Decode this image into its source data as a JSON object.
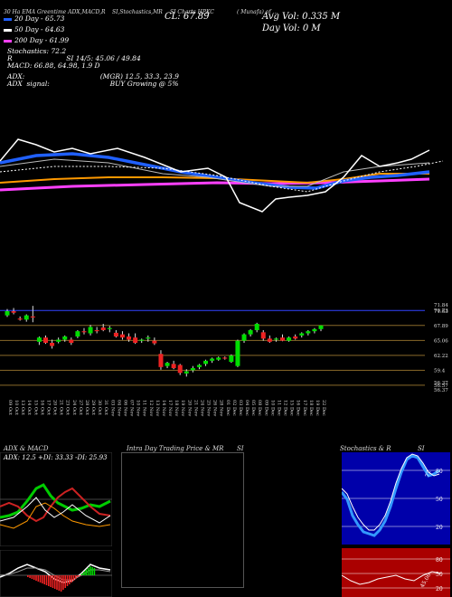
{
  "header": {
    "left_caption": "30 Ha EMA Greentime ADX,MACD,R",
    "mid_caption": "SI,Stochastics,MR",
    "right_caption": "SI Charts HPKC",
    "far_caption": "( Munafa) of ...",
    "close_label": "CL: 67.89",
    "avg_vol": "Avg Vol: 0.335  M",
    "day_vol": "Day Vol: 0   M"
  },
  "legend": [
    {
      "label": "20  Day - 65.73",
      "color": "#2060ff"
    },
    {
      "label": "50  Day - 64.63",
      "color": "#ffffff"
    },
    {
      "label": "200  Day - 61.99",
      "color": "#ff40ff"
    }
  ],
  "indicators": {
    "stoch": "Stochastics: 72.2",
    "rsi": "R                         SI 14/5: 45.06 / 49.84",
    "macd": "MACD: 66.88, 64.98, 1.9 D",
    "adx": "ADX:                                   (MGR) 12.5, 33.3, 23.9",
    "adx_signal": "ADX  signal:                            BUY Growing @ 5%"
  },
  "price_axis": [
    "71.84",
    "71.63",
    "70.73",
    "67.89",
    "65.06",
    "62.22",
    "59.4",
    "56.57",
    "56.37",
    "56.37"
  ],
  "date_labels": [
    "09 Oct",
    "10 Oct",
    "13 Oct",
    "14 Oct",
    "15 Oct",
    "16 Oct",
    "17 Oct",
    "20 Oct",
    "21 Oct",
    "23 Oct",
    "24 Oct",
    "27 Oct",
    "28 Oct",
    "29 Oct",
    "30 Oct",
    "31 Oct",
    "03 Nov",
    "04 Nov",
    "06 Nov",
    "07 Nov",
    "10 Nov",
    "11 Nov",
    "12 Nov",
    "13 Nov",
    "14 Nov",
    "17 Nov",
    "18 Nov",
    "19 Nov",
    "20 Nov",
    "21 Nov",
    "24 Nov",
    "25 Nov",
    "26 Nov",
    "28 Nov",
    "01 Dec",
    "02 Dec",
    "03 Dec",
    "04 Dec",
    "05 Dec",
    "08 Dec",
    "09 Dec",
    "10 Dec",
    "11 Dec",
    "12 Dec",
    "15 Dec",
    "16 Dec",
    "17 Dec",
    "18 Dec",
    "19 Dec",
    "22 Dec"
  ],
  "panels": {
    "adx_title": "ADX  & MACD",
    "adx_values": "ADX: 12.5  +DI: 33.33  -DI: 25.93",
    "intraday_title": "Intra  Day Trading Price  & MR",
    "intraday_si": "SI",
    "stoch_title": "Stochastics & R",
    "stoch_si": "SI",
    "stoch_axis": [
      "80",
      "50",
      "20"
    ],
    "rsi_axis": [
      "80",
      "50",
      "20"
    ],
    "stoch_value": "72",
    "rsi_value": "45.06"
  },
  "chart_data": {
    "type": "candlestick",
    "title": "",
    "ylim": [
      55,
      73
    ],
    "candles": [
      {
        "o": 69.8,
        "h": 71.0,
        "l": 69.5,
        "c": 70.6
      },
      {
        "o": 70.6,
        "h": 71.2,
        "l": 70.0,
        "c": 70.3
      },
      {
        "o": 69.2,
        "h": 69.6,
        "l": 68.8,
        "c": 69.0
      },
      {
        "o": 69.0,
        "h": 70.0,
        "l": 68.6,
        "c": 69.8
      },
      {
        "o": 69.6,
        "h": 71.6,
        "l": 68.5,
        "c": 69.4
      },
      {
        "o": 64.8,
        "h": 65.8,
        "l": 64.2,
        "c": 65.6
      },
      {
        "o": 65.6,
        "h": 66.0,
        "l": 64.4,
        "c": 64.6
      },
      {
        "o": 64.6,
        "h": 65.2,
        "l": 63.5,
        "c": 64.0
      },
      {
        "o": 64.8,
        "h": 65.6,
        "l": 64.5,
        "c": 65.2
      },
      {
        "o": 65.2,
        "h": 66.0,
        "l": 64.8,
        "c": 65.8
      },
      {
        "o": 65.2,
        "h": 65.6,
        "l": 64.2,
        "c": 64.6
      },
      {
        "o": 65.8,
        "h": 67.0,
        "l": 65.5,
        "c": 66.8
      },
      {
        "o": 66.8,
        "h": 67.4,
        "l": 66.2,
        "c": 66.6
      },
      {
        "o": 66.4,
        "h": 68.0,
        "l": 66.0,
        "c": 67.6
      },
      {
        "o": 67.0,
        "h": 67.6,
        "l": 66.4,
        "c": 66.8
      },
      {
        "o": 67.5,
        "h": 68.2,
        "l": 66.8,
        "c": 67.0
      },
      {
        "o": 67.2,
        "h": 67.8,
        "l": 66.6,
        "c": 67.4
      },
      {
        "o": 66.5,
        "h": 67.0,
        "l": 65.6,
        "c": 65.8
      },
      {
        "o": 66.2,
        "h": 66.8,
        "l": 65.2,
        "c": 65.6
      },
      {
        "o": 65.8,
        "h": 66.4,
        "l": 64.8,
        "c": 65.2
      },
      {
        "o": 65.6,
        "h": 66.4,
        "l": 64.4,
        "c": 64.6
      },
      {
        "o": 65.0,
        "h": 65.4,
        "l": 64.6,
        "c": 65.2
      },
      {
        "o": 65.4,
        "h": 66.0,
        "l": 64.8,
        "c": 65.6
      },
      {
        "o": 65.0,
        "h": 65.6,
        "l": 64.2,
        "c": 64.5
      },
      {
        "o": 62.5,
        "h": 63.2,
        "l": 59.5,
        "c": 60.0
      },
      {
        "o": 60.2,
        "h": 61.0,
        "l": 59.8,
        "c": 60.8
      },
      {
        "o": 60.6,
        "h": 61.2,
        "l": 59.6,
        "c": 59.8
      },
      {
        "o": 60.4,
        "h": 60.6,
        "l": 58.5,
        "c": 58.9
      },
      {
        "o": 58.8,
        "h": 59.6,
        "l": 58.2,
        "c": 59.2
      },
      {
        "o": 59.4,
        "h": 60.2,
        "l": 59.0,
        "c": 59.8
      },
      {
        "o": 60.0,
        "h": 60.6,
        "l": 59.6,
        "c": 60.4
      },
      {
        "o": 60.6,
        "h": 61.4,
        "l": 60.2,
        "c": 61.2
      },
      {
        "o": 61.2,
        "h": 61.8,
        "l": 60.8,
        "c": 61.6
      },
      {
        "o": 61.4,
        "h": 62.0,
        "l": 61.2,
        "c": 61.8
      },
      {
        "o": 61.8,
        "h": 62.0,
        "l": 61.4,
        "c": 61.6
      },
      {
        "o": 61.0,
        "h": 62.4,
        "l": 60.8,
        "c": 62.2
      },
      {
        "o": 60.2,
        "h": 65.2,
        "l": 60.0,
        "c": 65.0
      },
      {
        "o": 65.0,
        "h": 66.4,
        "l": 64.6,
        "c": 66.2
      },
      {
        "o": 66.2,
        "h": 67.2,
        "l": 65.8,
        "c": 67.0
      },
      {
        "o": 67.0,
        "h": 68.4,
        "l": 66.6,
        "c": 68.2
      },
      {
        "o": 66.6,
        "h": 67.0,
        "l": 65.0,
        "c": 65.4
      },
      {
        "o": 65.4,
        "h": 66.0,
        "l": 64.6,
        "c": 64.8
      },
      {
        "o": 65.2,
        "h": 65.6,
        "l": 64.8,
        "c": 65.4
      },
      {
        "o": 65.6,
        "h": 66.2,
        "l": 64.9,
        "c": 65.0
      },
      {
        "o": 65.0,
        "h": 65.8,
        "l": 64.8,
        "c": 65.6
      },
      {
        "o": 65.8,
        "h": 66.2,
        "l": 65.2,
        "c": 65.4
      },
      {
        "o": 66.0,
        "h": 66.6,
        "l": 65.6,
        "c": 66.4
      },
      {
        "o": 66.4,
        "h": 67.0,
        "l": 66.0,
        "c": 66.8
      },
      {
        "o": 66.8,
        "h": 67.4,
        "l": 66.4,
        "c": 67.2
      },
      {
        "o": 67.2,
        "h": 67.9,
        "l": 66.8,
        "c": 67.89
      }
    ]
  }
}
